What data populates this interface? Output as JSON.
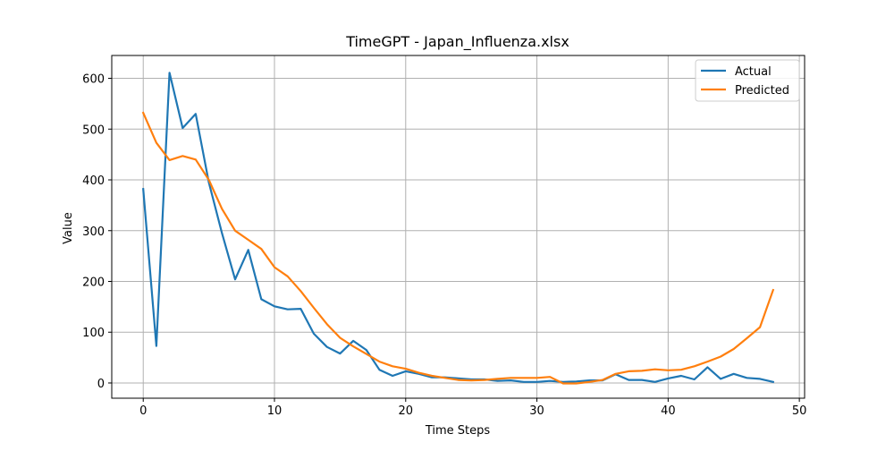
{
  "chart_data": {
    "type": "line",
    "title": "TimeGPT - Japan_Influenza.xlsx",
    "xlabel": "Time Steps",
    "ylabel": "Value",
    "xlim": [
      -2.4,
      50.4
    ],
    "ylim": [
      -30,
      645
    ],
    "xticks": [
      0,
      10,
      20,
      30,
      40,
      50
    ],
    "yticks": [
      0,
      100,
      200,
      300,
      400,
      500,
      600
    ],
    "grid": true,
    "legend_position": "top-right",
    "series": [
      {
        "name": "Actual",
        "color": "#1f77b4",
        "x": [
          0,
          1,
          2,
          3,
          4,
          5,
          6,
          7,
          8,
          9,
          10,
          11,
          12,
          13,
          14,
          15,
          16,
          17,
          18,
          19,
          20,
          21,
          22,
          23,
          24,
          25,
          26,
          27,
          28,
          29,
          30,
          31,
          32,
          33,
          34,
          35,
          36,
          37,
          38,
          39,
          40,
          41,
          42,
          43,
          44,
          45,
          46,
          47,
          48
        ],
        "values": [
          382,
          73,
          611,
          502,
          530,
          395,
          295,
          204,
          262,
          165,
          151,
          145,
          146,
          97,
          71,
          58,
          83,
          65,
          26,
          14,
          23,
          18,
          11,
          11,
          9,
          7,
          7,
          4,
          5,
          2,
          2,
          4,
          2,
          3,
          5,
          5,
          17,
          6,
          6,
          2,
          9,
          14,
          7,
          31,
          8,
          18,
          10,
          8,
          2
        ]
      },
      {
        "name": "Predicted",
        "color": "#ff7f0e",
        "x": [
          0,
          1,
          2,
          3,
          4,
          5,
          6,
          7,
          8,
          9,
          10,
          11,
          12,
          13,
          14,
          15,
          16,
          17,
          18,
          19,
          20,
          21,
          22,
          23,
          24,
          25,
          26,
          27,
          28,
          29,
          30,
          31,
          32,
          33,
          34,
          35,
          36,
          37,
          38,
          39,
          40,
          41,
          42,
          43,
          44,
          45,
          46,
          47,
          48
        ],
        "values": [
          532,
          473,
          439,
          447,
          440,
          400,
          343,
          300,
          282,
          264,
          228,
          210,
          181,
          148,
          116,
          89,
          72,
          57,
          42,
          33,
          28,
          20,
          14,
          10,
          6,
          5,
          6,
          8,
          10,
          10,
          10,
          12,
          -1,
          -1,
          2,
          6,
          18,
          23,
          24,
          27,
          25,
          26,
          33,
          42,
          52,
          67,
          88,
          110,
          183
        ]
      }
    ]
  }
}
